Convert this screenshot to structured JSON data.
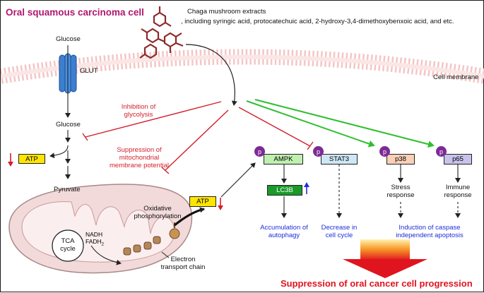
{
  "title": "Oral squamous carcinoma cell",
  "extract": {
    "line1": "Chaga mushroom extracts",
    "line2": ", including syringic acid, protocatechuic acid, 2-hydroxy-3,4-dimethoxybenxoic acid, and etc."
  },
  "membrane_label": "Cell membrane",
  "glut_label": "GLUT",
  "glucose_top": "Glucose",
  "glucose_mid": "Glucose",
  "atp_left": "ATP",
  "pyruvate": "Pyruvate",
  "tca": {
    "line1": "TCA",
    "line2": "cycle"
  },
  "nadh": "NADH",
  "fadh2": "FADH",
  "fadh2_sub": "2",
  "oxphos": {
    "line1": "Oxidative",
    "line2": "phosphorylation"
  },
  "etc": {
    "line1": "Electron",
    "line2": "transport chain"
  },
  "atp_right": "ATP",
  "inhibition_glycolysis": {
    "line1": "Inhibition of",
    "line2": "glycolysis"
  },
  "suppression_mmp": {
    "line1": "Suppression of",
    "line2": "mitochondrial",
    "line3": "membrane potential"
  },
  "p_label": "p",
  "proteins": {
    "ampk": "AMPK",
    "lc3b": "LC3B",
    "stat3": "STAT3",
    "p38": "p38",
    "p65": "p65"
  },
  "stress": {
    "line1": "Stress",
    "line2": "response"
  },
  "immune": {
    "line1": "Immune",
    "line2": "response"
  },
  "outcomes": {
    "autophagy": {
      "line1": "Accumulation of",
      "line2": "autophagy"
    },
    "cell_cycle": {
      "line1": "Decrease in",
      "line2": "cell cycle"
    },
    "apoptosis": {
      "line1": "Induction of caspase",
      "line2": "independent apoptosis"
    }
  },
  "final": "Suppression of oral cancer cell progression",
  "colors": {
    "title": "#b0176f",
    "inhibition": "#d21f2b",
    "activation": "#2fbf2f",
    "outcome_text": "#1f2fd6",
    "atp_box": "#ffe600",
    "ampk_box": "#bff0b0",
    "lc3b_box": "#1a9a2a",
    "stat3_box": "#cfe7f5",
    "p38_box": "#f8d0b8",
    "p65_box": "#c7c3ea",
    "phospho": "#7d2a96",
    "mitochondria": "#f2dada",
    "glut": "#3c7fd0"
  }
}
